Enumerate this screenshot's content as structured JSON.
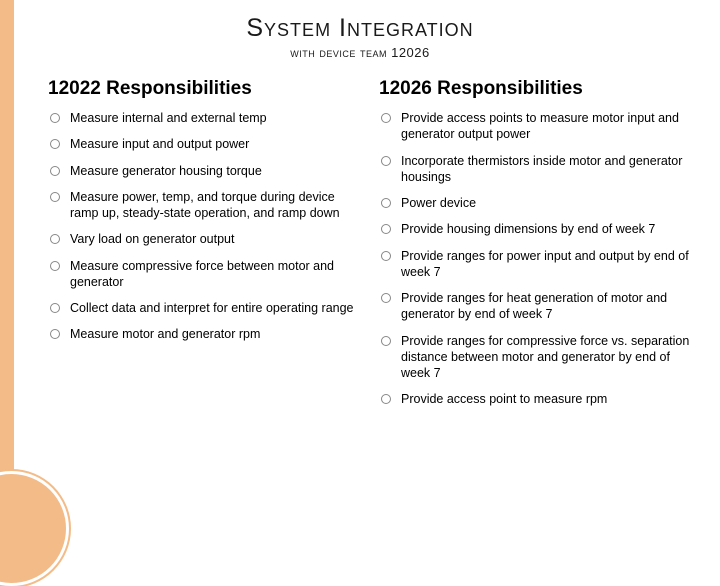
{
  "title": {
    "main": "System Integration",
    "sub_prefix": "with device team ",
    "sub_team": "12026"
  },
  "accent_color": "#f3bb87",
  "columns": {
    "left": {
      "heading": "12022 Responsibilities",
      "items": [
        "Measure internal and external temp",
        "Measure input and output power",
        "Measure generator housing torque",
        "Measure power, temp, and torque during device ramp up, steady-state operation, and ramp down",
        "Vary load on generator output",
        "Measure compressive force between motor and generator",
        "Collect data and interpret for entire operating range",
        "Measure motor and generator rpm"
      ]
    },
    "right": {
      "heading": "12026 Responsibilities",
      "items": [
        "Provide access points to measure motor input and generator output power",
        "Incorporate thermistors inside motor and generator housings",
        "Power device",
        "Provide housing dimensions  by end of week 7",
        "Provide ranges for power input and output by end of week 7",
        "Provide ranges for heat generation of motor and generator by end of week 7",
        "Provide ranges for compressive force vs. separation distance between motor and generator by end of week 7",
        "Provide access point to measure rpm"
      ]
    }
  }
}
